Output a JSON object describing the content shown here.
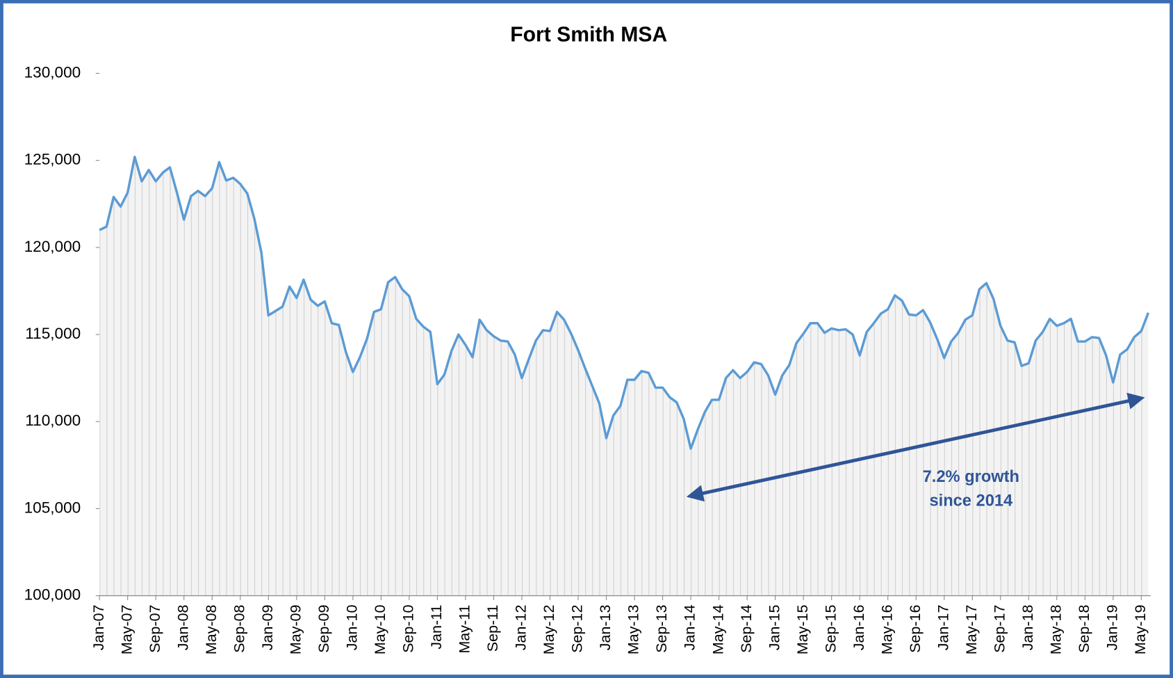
{
  "chart_data": {
    "type": "line",
    "title": "Fort Smith MSA",
    "annotation": [
      "7.2% growth",
      "since 2014"
    ],
    "categories": [
      "Jan-07",
      null,
      null,
      null,
      "May-07",
      null,
      null,
      null,
      "Sep-07",
      null,
      null,
      null,
      "Jan-08",
      null,
      null,
      null,
      "May-08",
      null,
      null,
      null,
      "Sep-08",
      null,
      null,
      null,
      "Jan-09",
      null,
      null,
      null,
      "May-09",
      null,
      null,
      null,
      "Sep-09",
      null,
      null,
      null,
      "Jan-10",
      null,
      null,
      null,
      "May-10",
      null,
      null,
      null,
      "Sep-10",
      null,
      null,
      null,
      "Jan-11",
      null,
      null,
      null,
      "May-11",
      null,
      null,
      null,
      "Sep-11",
      null,
      null,
      null,
      "Jan-12",
      null,
      null,
      null,
      "May-12",
      null,
      null,
      null,
      "Sep-12",
      null,
      null,
      null,
      "Jan-13",
      null,
      null,
      null,
      "May-13",
      null,
      null,
      null,
      "Sep-13",
      null,
      null,
      null,
      "Jan-14",
      null,
      null,
      null,
      "May-14",
      null,
      null,
      null,
      "Sep-14",
      null,
      null,
      null,
      "Jan-15",
      null,
      null,
      null,
      "May-15",
      null,
      null,
      null,
      "Sep-15",
      null,
      null,
      null,
      "Jan-16",
      null,
      null,
      null,
      "May-16",
      null,
      null,
      null,
      "Sep-16",
      null,
      null,
      null,
      "Jan-17",
      null,
      null,
      null,
      "May-17",
      null,
      null,
      null,
      "Sep-17",
      null,
      null,
      null,
      "Jan-18",
      null,
      null,
      null,
      "May-18",
      null,
      null,
      null,
      "Sep-18",
      null,
      null,
      null,
      "Jan-19",
      null,
      null,
      null,
      "May-19",
      null
    ],
    "series": [
      {
        "color": "#5b9bd5",
        "values": [
          121000,
          121200,
          122900,
          122350,
          123150,
          125200,
          123800,
          124450,
          123800,
          124300,
          124600,
          123150,
          121600,
          122950,
          123250,
          122950,
          123400,
          124900,
          123850,
          124000,
          123650,
          123100,
          121650,
          119700,
          116100,
          116350,
          116600,
          117750,
          117100,
          118150,
          117000,
          116650,
          116900,
          115650,
          115550,
          114000,
          112850,
          113700,
          114750,
          116300,
          116450,
          118000,
          118300,
          117600,
          117200,
          115900,
          115450,
          115150,
          112150,
          112700,
          114050,
          115000,
          114400,
          113700,
          115850,
          115250,
          114900,
          114650,
          114600,
          113850,
          112500,
          113600,
          114650,
          115250,
          115200,
          116300,
          115850,
          115050,
          114100,
          113050,
          112050,
          111050,
          109050,
          110350,
          110900,
          112400,
          112400,
          112900,
          112800,
          111950,
          111950,
          111400,
          111100,
          110150,
          108450,
          109550,
          110550,
          111250,
          111250,
          112500,
          112950,
          112500,
          112850,
          113400,
          113300,
          112650,
          111550,
          112650,
          113250,
          114500,
          115050,
          115650,
          115650,
          115100,
          115350,
          115250,
          115300,
          115000,
          113800,
          115150,
          115650,
          116200,
          116450,
          117250,
          116950,
          116150,
          116100,
          116400,
          115700,
          114750,
          113650,
          114600,
          115100,
          115850,
          116100,
          117600,
          117950,
          117050,
          115500,
          114650,
          114550,
          113200,
          113350,
          114650,
          115150,
          115900,
          115500,
          115650,
          115900,
          114600,
          114600,
          114850,
          114800,
          113800,
          112250,
          113850,
          114150,
          114850,
          115200,
          116250
        ]
      }
    ],
    "ylim": [
      100000,
      130000
    ],
    "yticks": [
      {
        "value": 100000,
        "label": "100,000"
      },
      {
        "value": 105000,
        "label": "105,000"
      },
      {
        "value": 110000,
        "label": "110,000"
      },
      {
        "value": 115000,
        "label": "115,000"
      },
      {
        "value": 120000,
        "label": "120,000"
      },
      {
        "value": 125000,
        "label": "125,000"
      },
      {
        "value": 130000,
        "label": "130,000"
      }
    ]
  }
}
